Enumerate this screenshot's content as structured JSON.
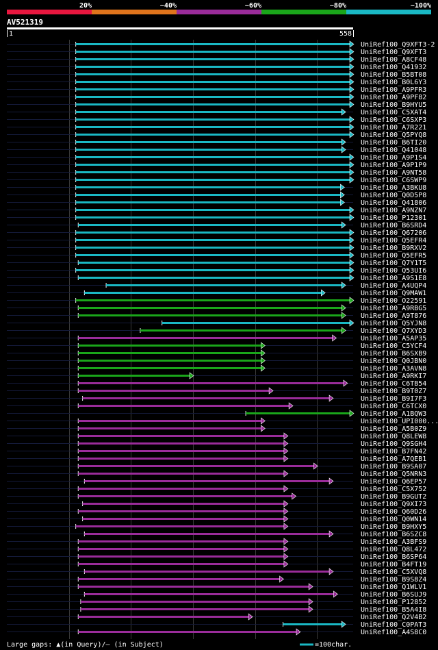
{
  "chart_data": {
    "type": "alignment-overview",
    "title": "AV521319",
    "query_start": "1",
    "query_end": "558",
    "legend": [
      {
        "label": "20%",
        "color": "#e8173f"
      },
      {
        "label": "~40%",
        "color": "#e0741c"
      },
      {
        "label": "~60%",
        "color": "#9a2c9a"
      },
      {
        "label": "~80%",
        "color": "#1aa61a"
      },
      {
        "label": "~100%",
        "color": "#1ab8c4"
      }
    ],
    "query_length": 558,
    "footer_gaps": "Large gaps: ▲(in Query)/– (in Subject)",
    "footer_scale": "=100char.",
    "hits": [
      {
        "name": "UniRef100_Q9XFT3-2",
        "start": 111,
        "end": 558,
        "color": "#1ab8c4"
      },
      {
        "name": "UniRef100_Q9XFT3",
        "start": 111,
        "end": 558,
        "color": "#1ab8c4"
      },
      {
        "name": "UniRef100_A8CF48",
        "start": 111,
        "end": 558,
        "color": "#1ab8c4"
      },
      {
        "name": "UniRef100_Q41932",
        "start": 111,
        "end": 558,
        "color": "#1ab8c4"
      },
      {
        "name": "UniRef100_B5BT08",
        "start": 111,
        "end": 558,
        "color": "#1ab8c4"
      },
      {
        "name": "UniRef100_B0L6Y3",
        "start": 111,
        "end": 558,
        "color": "#1ab8c4"
      },
      {
        "name": "UniRef100_A9PFR3",
        "start": 111,
        "end": 558,
        "color": "#1ab8c4"
      },
      {
        "name": "UniRef100_A9PF82",
        "start": 111,
        "end": 558,
        "color": "#1ab8c4"
      },
      {
        "name": "UniRef100_B9HYU5",
        "start": 111,
        "end": 558,
        "color": "#1ab8c4"
      },
      {
        "name": "UniRef100_C5XAT4",
        "start": 111,
        "end": 545,
        "color": "#1ab8c4"
      },
      {
        "name": "UniRef100_C6SXP3",
        "start": 111,
        "end": 558,
        "color": "#1ab8c4"
      },
      {
        "name": "UniRef100_A7R221",
        "start": 111,
        "end": 558,
        "color": "#1ab8c4"
      },
      {
        "name": "UniRef100_Q5PYQ8",
        "start": 111,
        "end": 558,
        "color": "#1ab8c4"
      },
      {
        "name": "UniRef100_B6TI20",
        "start": 111,
        "end": 545,
        "color": "#1ab8c4"
      },
      {
        "name": "UniRef100_Q41048",
        "start": 111,
        "end": 545,
        "color": "#1ab8c4"
      },
      {
        "name": "UniRef100_A9P1S4",
        "start": 111,
        "end": 558,
        "color": "#1ab8c4"
      },
      {
        "name": "UniRef100_A9P1P9",
        "start": 111,
        "end": 558,
        "color": "#1ab8c4"
      },
      {
        "name": "UniRef100_A9NT58",
        "start": 111,
        "end": 558,
        "color": "#1ab8c4"
      },
      {
        "name": "UniRef100_C6SWP9",
        "start": 111,
        "end": 558,
        "color": "#1ab8c4"
      },
      {
        "name": "UniRef100_A3BKU8",
        "start": 111,
        "end": 543,
        "color": "#1ab8c4"
      },
      {
        "name": "UniRef100_Q0D5P8",
        "start": 111,
        "end": 543,
        "color": "#1ab8c4"
      },
      {
        "name": "UniRef100_Q41806",
        "start": 111,
        "end": 543,
        "color": "#1ab8c4"
      },
      {
        "name": "UniRef100_A9NZN7",
        "start": 111,
        "end": 558,
        "color": "#1ab8c4"
      },
      {
        "name": "UniRef100_P12301",
        "start": 111,
        "end": 558,
        "color": "#1ab8c4"
      },
      {
        "name": "UniRef100_B6SRD4",
        "start": 115,
        "end": 545,
        "color": "#1ab8c4"
      },
      {
        "name": "UniRef100_Q67206",
        "start": 111,
        "end": 558,
        "color": "#1ab8c4"
      },
      {
        "name": "UniRef100_Q5EFR4",
        "start": 111,
        "end": 558,
        "color": "#1ab8c4"
      },
      {
        "name": "UniRef100_B9RXV2",
        "start": 111,
        "end": 558,
        "color": "#1ab8c4"
      },
      {
        "name": "UniRef100_Q5EFR5",
        "start": 111,
        "end": 558,
        "color": "#1ab8c4"
      },
      {
        "name": "UniRef100_Q7Y1T5",
        "start": 115,
        "end": 558,
        "color": "#1ab8c4"
      },
      {
        "name": "UniRef100_Q53UI6",
        "start": 111,
        "end": 558,
        "color": "#1ab8c4"
      },
      {
        "name": "UniRef100_A9S1E8",
        "start": 115,
        "end": 558,
        "color": "#1ab8c4"
      },
      {
        "name": "UniRef100_A4UQP4",
        "start": 160,
        "end": 545,
        "color": "#1ab8c4"
      },
      {
        "name": "UniRef100_Q9MAW1",
        "start": 125,
        "end": 512,
        "color": "#1ab8c4"
      },
      {
        "name": "UniRef100_O22591",
        "start": 111,
        "end": 558,
        "color": "#1aa61a"
      },
      {
        "name": "UniRef100_A9RBG5",
        "start": 115,
        "end": 545,
        "color": "#1aa61a"
      },
      {
        "name": "UniRef100_A9T876",
        "start": 115,
        "end": 545,
        "color": "#1aa61a"
      },
      {
        "name": "UniRef100_Q5YJN8",
        "start": 250,
        "end": 558,
        "color": "#1ab8c4"
      },
      {
        "name": "UniRef100_Q7XYD3",
        "start": 215,
        "end": 545,
        "color": "#1aa61a"
      },
      {
        "name": "UniRef100_A5AP35",
        "start": 115,
        "end": 530,
        "color": "#9a2c9a"
      },
      {
        "name": "UniRef100_C5YCF4",
        "start": 115,
        "end": 415,
        "color": "#1aa61a"
      },
      {
        "name": "UniRef100_B6SXB9",
        "start": 115,
        "end": 415,
        "color": "#1aa61a"
      },
      {
        "name": "UniRef100_Q0JBN0",
        "start": 115,
        "end": 415,
        "color": "#1aa61a"
      },
      {
        "name": "UniRef100_A3AVN8",
        "start": 115,
        "end": 415,
        "color": "#1aa61a"
      },
      {
        "name": "UniRef100_A9RKI7",
        "start": 115,
        "end": 300,
        "color": "#1aa61a"
      },
      {
        "name": "UniRef100_C6TB54",
        "start": 115,
        "end": 548,
        "color": "#9a2c9a"
      },
      {
        "name": "UniRef100_B9T0Z7",
        "start": 115,
        "end": 428,
        "color": "#9a2c9a"
      },
      {
        "name": "UniRef100_B9I7F3",
        "start": 122,
        "end": 525,
        "color": "#9a2c9a"
      },
      {
        "name": "UniRef100_C6TCX0",
        "start": 115,
        "end": 460,
        "color": "#9a2c9a"
      },
      {
        "name": "UniRef100_A1BQW3",
        "start": 385,
        "end": 558,
        "color": "#1aa61a"
      },
      {
        "name": "UniRef100_UPI000...",
        "start": 115,
        "end": 415,
        "color": "#9a2c9a"
      },
      {
        "name": "UniRef100_A5B0Z9",
        "start": 115,
        "end": 415,
        "color": "#9a2c9a"
      },
      {
        "name": "UniRef100_Q8LEW8",
        "start": 115,
        "end": 452,
        "color": "#9a2c9a"
      },
      {
        "name": "UniRef100_Q9SGH4",
        "start": 115,
        "end": 452,
        "color": "#9a2c9a"
      },
      {
        "name": "UniRef100_B7FN42",
        "start": 115,
        "end": 452,
        "color": "#9a2c9a"
      },
      {
        "name": "UniRef100_A7QEB1",
        "start": 115,
        "end": 452,
        "color": "#9a2c9a"
      },
      {
        "name": "UniRef100_B9SA07",
        "start": 115,
        "end": 500,
        "color": "#9a2c9a"
      },
      {
        "name": "UniRef100_Q5NRN3",
        "start": 115,
        "end": 452,
        "color": "#9a2c9a"
      },
      {
        "name": "UniRef100_Q6EP57",
        "start": 125,
        "end": 525,
        "color": "#9a2c9a"
      },
      {
        "name": "UniRef100_C5X752",
        "start": 115,
        "end": 452,
        "color": "#9a2c9a"
      },
      {
        "name": "UniRef100_B9GUT2",
        "start": 115,
        "end": 465,
        "color": "#9a2c9a"
      },
      {
        "name": "UniRef100_Q9XI73",
        "start": 122,
        "end": 452,
        "color": "#9a2c9a"
      },
      {
        "name": "UniRef100_Q60D26",
        "start": 115,
        "end": 452,
        "color": "#9a2c9a"
      },
      {
        "name": "UniRef100_Q0WN14",
        "start": 122,
        "end": 452,
        "color": "#9a2c9a"
      },
      {
        "name": "UniRef100_B9HXY5",
        "start": 111,
        "end": 452,
        "color": "#9a2c9a"
      },
      {
        "name": "UniRef100_B6SZC8",
        "start": 125,
        "end": 525,
        "color": "#9a2c9a"
      },
      {
        "name": "UniRef100_A3BFS9",
        "start": 115,
        "end": 452,
        "color": "#9a2c9a"
      },
      {
        "name": "UniRef100_Q8L472",
        "start": 115,
        "end": 452,
        "color": "#9a2c9a"
      },
      {
        "name": "UniRef100_B6SP64",
        "start": 115,
        "end": 452,
        "color": "#9a2c9a"
      },
      {
        "name": "UniRef100_B4FT19",
        "start": 115,
        "end": 452,
        "color": "#9a2c9a"
      },
      {
        "name": "UniRef100_C5XVQ8",
        "start": 125,
        "end": 525,
        "color": "#9a2c9a"
      },
      {
        "name": "UniRef100_B9S8Z4",
        "start": 115,
        "end": 445,
        "color": "#9a2c9a"
      },
      {
        "name": "UniRef100_Q1WLV1",
        "start": 115,
        "end": 492,
        "color": "#9a2c9a"
      },
      {
        "name": "UniRef100_B6SUJ9",
        "start": 125,
        "end": 532,
        "color": "#9a2c9a"
      },
      {
        "name": "UniRef100_P12852",
        "start": 119,
        "end": 492,
        "color": "#9a2c9a"
      },
      {
        "name": "UniRef100_B5A4I8",
        "start": 119,
        "end": 492,
        "color": "#9a2c9a"
      },
      {
        "name": "UniRef100_Q2V4B2",
        "start": 115,
        "end": 395,
        "color": "#9a2c9a"
      },
      {
        "name": "UniRef100_C0PAT3",
        "start": 445,
        "end": 545,
        "color": "#1ab8c4"
      },
      {
        "name": "UniRef100_A4S8C0",
        "start": 115,
        "end": 472,
        "color": "#9a2c9a"
      }
    ]
  }
}
